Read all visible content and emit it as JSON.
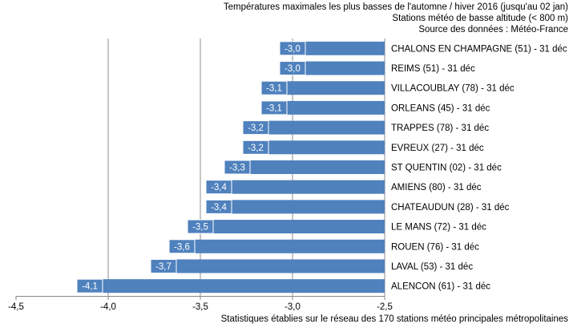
{
  "chart_data": {
    "type": "bar",
    "orientation": "horizontal",
    "title_lines": [
      "Températures maximales les plus basses de l'automne / hiver 2016 (jusqu'au 02 jan)",
      "Stations météo de basse altitude (< 800 m)",
      "Source des données : Météo-France"
    ],
    "footnote": "Statistiques établies sur le réseau des 170 stations météo principales métropolitaines",
    "categories": [
      "CHALONS EN CHAMPAGNE (51) - 31 déc",
      "REIMS (51) - 31 déc",
      "VILLACOUBLAY (78) - 31 déc",
      "ORLEANS (45) - 31 déc",
      "TRAPPES (78) - 31 déc",
      "EVREUX (27) - 31 déc",
      "ST QUENTIN (02) - 31 déc",
      "AMIENS (80) - 31 déc",
      "CHATEAUDUN (28) - 31 déc",
      "LE MANS (72) - 31 déc",
      "ROUEN (76) - 31 déc",
      "LAVAL (53) - 31 déc",
      "ALENCON (61) - 31 déc"
    ],
    "values": [
      -3.0,
      -3.0,
      -3.1,
      -3.1,
      -3.2,
      -3.2,
      -3.3,
      -3.4,
      -3.4,
      -3.5,
      -3.6,
      -3.7,
      -4.1
    ],
    "value_labels": [
      "-3,0",
      "-3,0",
      "-3,1",
      "-3,1",
      "-3,2",
      "-3,2",
      "-3,3",
      "-3,4",
      "-3,4",
      "-3,5",
      "-3,6",
      "-3,7",
      "-4,1"
    ],
    "xlim": [
      -4.5,
      -2.5
    ],
    "xticks": [
      -4.5,
      -4.0,
      -3.5,
      -3.0,
      -2.5
    ],
    "xtick_labels": [
      "-4,5",
      "-4,0",
      "-3,5",
      "-3,0",
      "-2,5"
    ],
    "grid": "vertical",
    "colors": {
      "bar": "#4f81bd",
      "bar_edge": "#3a6aa6",
      "grid": "#8c8c8c",
      "axis": "#888888"
    }
  }
}
